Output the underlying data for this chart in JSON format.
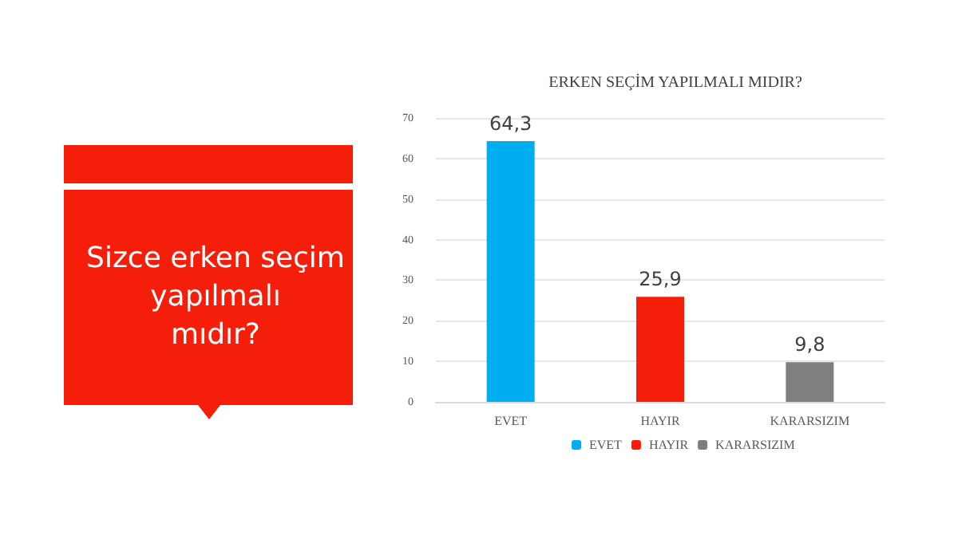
{
  "chart_data": {
    "type": "bar",
    "title": "ERKEN SEÇİM YAPILMALI MIDIR?",
    "subtitle": "Sizce erken seçim yapılmalı mıdır?",
    "categories": [
      "EVET",
      "HAYIR",
      "KARARSIZIM"
    ],
    "series": [
      {
        "name": "EVET",
        "color": "#00aeef",
        "values": [
          64.3,
          null,
          null
        ],
        "value_labels": [
          "64,3",
          null,
          null
        ]
      },
      {
        "name": "HAYIR",
        "color": "#f51e0a",
        "values": [
          null,
          25.9,
          null
        ],
        "value_labels": [
          null,
          "25,9",
          null
        ]
      },
      {
        "name": "KARARSIZIM",
        "color": "#7f7f7f",
        "values": [
          null,
          null,
          9.8
        ],
        "value_labels": [
          null,
          null,
          "9,8"
        ]
      }
    ],
    "stacked": true,
    "ylim": [
      0,
      70
    ],
    "yticks": [
      0,
      10,
      20,
      30,
      40,
      50,
      60,
      70
    ],
    "grid": "y",
    "legend": "bottom"
  }
}
